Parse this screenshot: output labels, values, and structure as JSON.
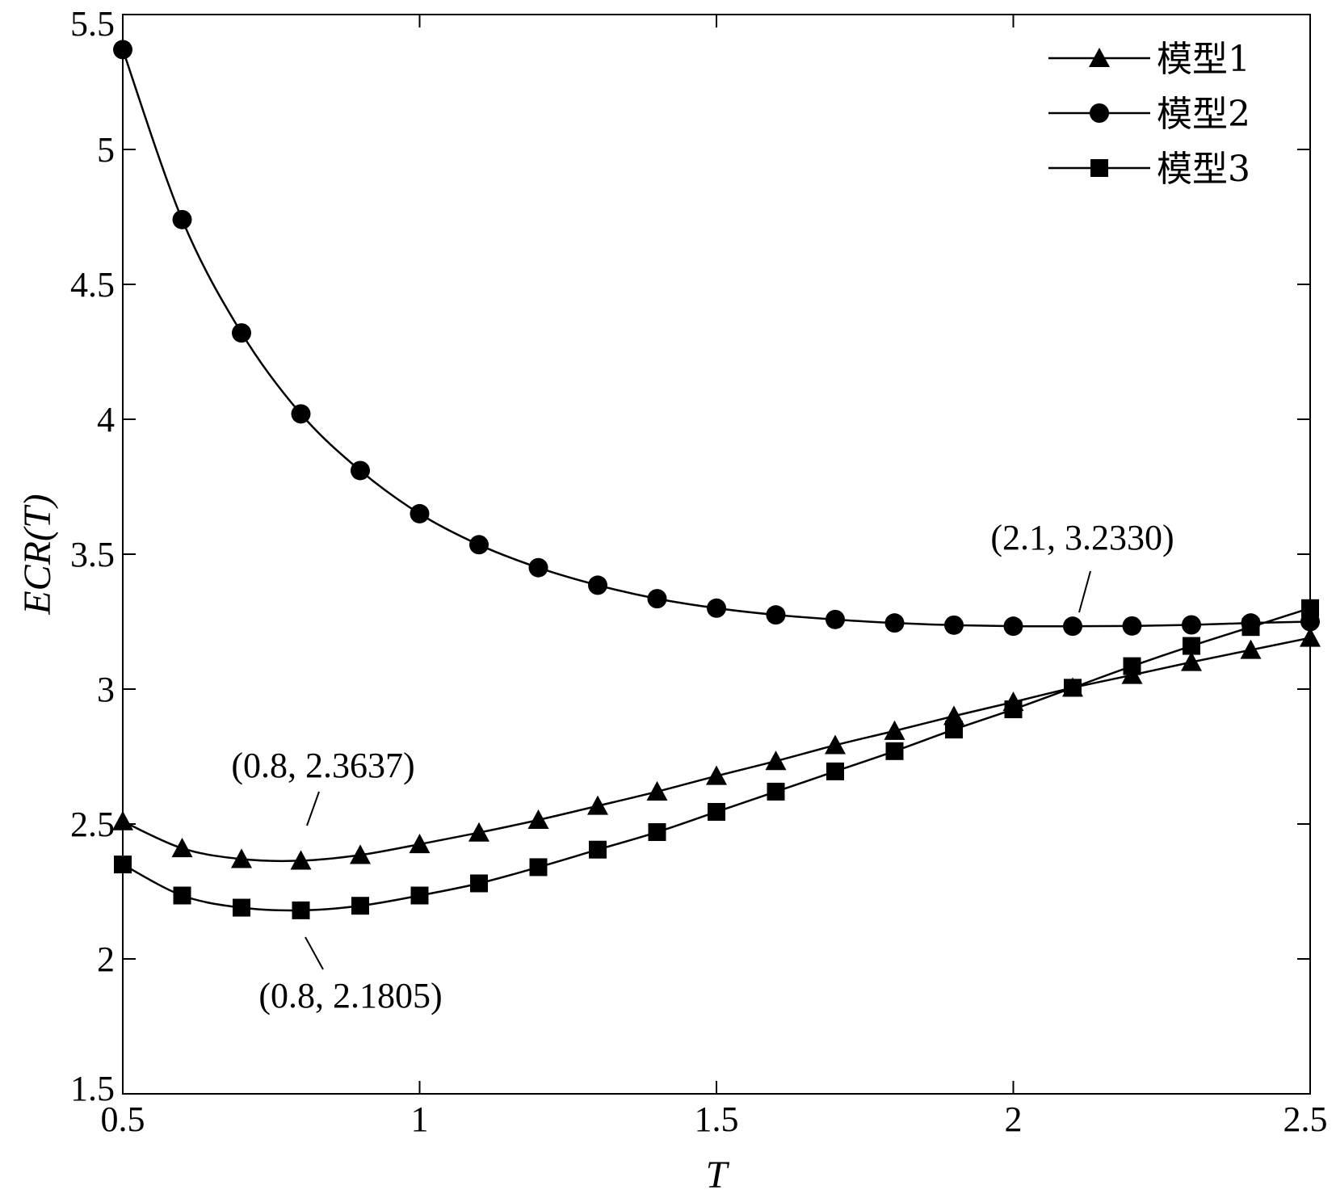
{
  "chart_data": {
    "type": "line",
    "title": "",
    "xlabel": "T",
    "ylabel": "ECR(T)",
    "xlim": [
      0.5,
      2.5
    ],
    "ylim": [
      1.5,
      5.5
    ],
    "xticks": [
      0.5,
      1,
      1.5,
      2,
      2.5
    ],
    "xtick_labels": [
      "0.5",
      "1",
      "1.5",
      "2",
      "2.5"
    ],
    "yticks": [
      1.5,
      2,
      2.5,
      3,
      3.5,
      4,
      4.5,
      5,
      5.5
    ],
    "ytick_labels": [
      "1.5",
      "2",
      "2.5",
      "3",
      "3.5",
      "4",
      "4.5",
      "5",
      "5.5"
    ],
    "grid": false,
    "legend_position": "top-right",
    "x": [
      0.5,
      0.6,
      0.7,
      0.8,
      0.9,
      1.0,
      1.1,
      1.2,
      1.3,
      1.4,
      1.5,
      1.6,
      1.7,
      1.8,
      1.9,
      2.0,
      2.1,
      2.2,
      2.3,
      2.4,
      2.5
    ],
    "series": [
      {
        "name": "模型1",
        "marker": "triangle",
        "values": [
          2.51,
          2.41,
          2.37,
          2.364,
          2.385,
          2.425,
          2.468,
          2.515,
          2.567,
          2.62,
          2.678,
          2.733,
          2.792,
          2.845,
          2.9,
          2.952,
          3.005,
          3.052,
          3.1,
          3.145,
          3.19
        ]
      },
      {
        "name": "模型2",
        "marker": "circle",
        "values": [
          5.37,
          4.74,
          4.32,
          4.02,
          3.81,
          3.65,
          3.535,
          3.45,
          3.385,
          3.335,
          3.3,
          3.275,
          3.258,
          3.245,
          3.237,
          3.233,
          3.233,
          3.234,
          3.238,
          3.245,
          3.25
        ]
      },
      {
        "name": "模型3",
        "marker": "square",
        "values": [
          2.35,
          2.235,
          2.19,
          2.18,
          2.197,
          2.235,
          2.28,
          2.34,
          2.405,
          2.47,
          2.545,
          2.62,
          2.695,
          2.77,
          2.85,
          2.925,
          3.005,
          3.085,
          3.16,
          3.23,
          3.3
        ]
      }
    ],
    "annotations": [
      {
        "text": "(0.8, 2.3637)",
        "x": 0.8,
        "y": 2.3637
      },
      {
        "text": "(0.8, 2.1805)",
        "x": 0.8,
        "y": 2.1805
      },
      {
        "text": "(2.1, 3.2330)",
        "x": 2.1,
        "y": 3.233
      }
    ]
  }
}
